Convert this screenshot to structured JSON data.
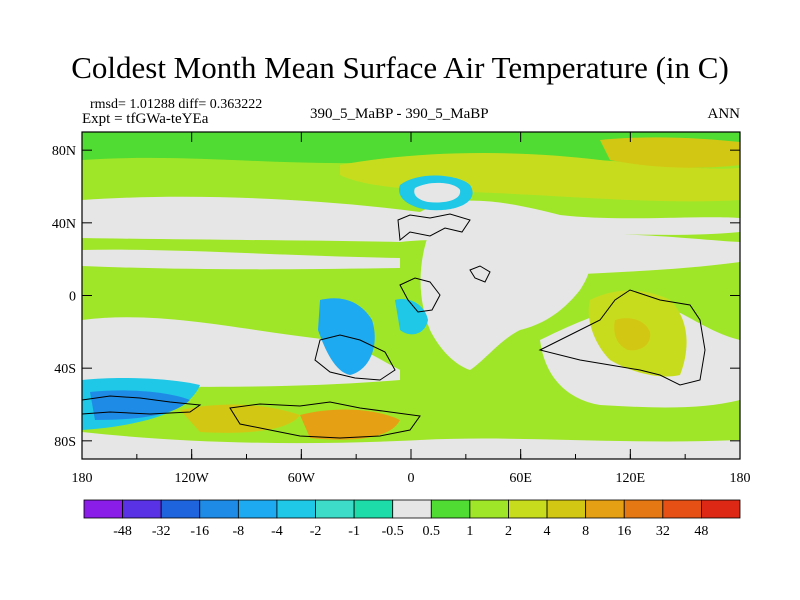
{
  "chart_data": {
    "type": "heatmap",
    "title": "Coldest Month Mean Surface Air Temperature (in C)",
    "stats_line": "rmsd= 1.01288 diff= 0.363222",
    "experiment": "Expt = tfGWa-teYEa",
    "comparison": "390_5_MaBP - 390_5_MaBP",
    "season": "ANN",
    "x_ticks": [
      "180",
      "120W",
      "60W",
      "0",
      "60E",
      "120E",
      "180"
    ],
    "y_ticks": [
      "80N",
      "40N",
      "0",
      "40S",
      "80S"
    ],
    "colorbar_labels": [
      "-48",
      "-32",
      "-16",
      "-8",
      "-4",
      "-2",
      "-1",
      "-0.5",
      "0.5",
      "1",
      "2",
      "4",
      "8",
      "16",
      "32",
      "48"
    ],
    "colorbar_colors": [
      "#8a1ee8",
      "#5a32e6",
      "#1e64dc",
      "#1e8ce6",
      "#1eaaf0",
      "#1ec8e6",
      "#3cdcc8",
      "#1edcaa",
      "#e6e6e6",
      "#50dc32",
      "#a0e628",
      "#c8dc1e",
      "#d2c814",
      "#e6a014",
      "#e67814",
      "#e65014",
      "#dc2814"
    ]
  }
}
